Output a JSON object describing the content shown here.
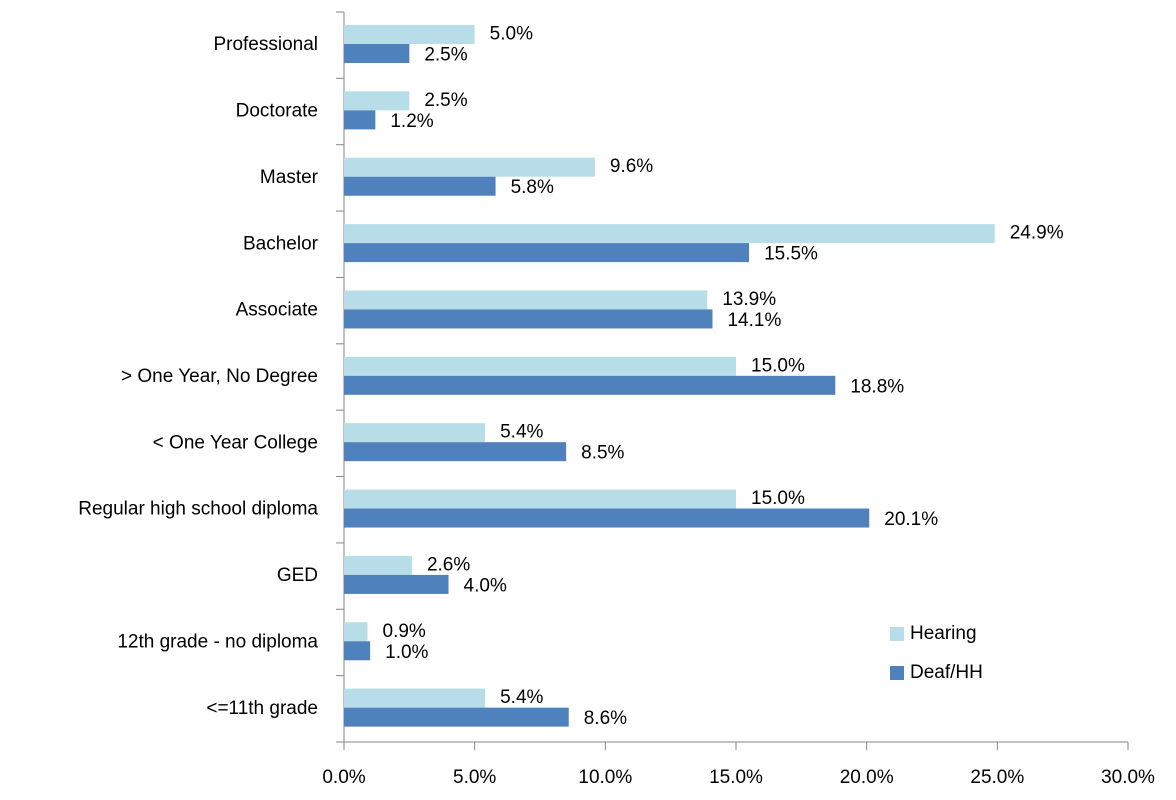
{
  "chart_data": {
    "type": "hbar",
    "categories": [
      "Professional",
      "Doctorate",
      "Master",
      "Bachelor",
      "Associate",
      "> One Year, No Degree",
      "< One Year College",
      "Regular high school diploma",
      "GED",
      "12th grade - no diploma",
      "<=11th grade"
    ],
    "series": [
      {
        "name": "Hearing",
        "color": "#b7dee8",
        "values": [
          5.0,
          2.5,
          9.6,
          24.9,
          13.9,
          15.0,
          5.4,
          15.0,
          2.6,
          0.9,
          5.4
        ],
        "value_labels": [
          "5.0%",
          "2.5%",
          "9.6%",
          "24.9%",
          "13.9%",
          "15.0%",
          "5.4%",
          "15.0%",
          "2.6%",
          "0.9%",
          "5.4%"
        ]
      },
      {
        "name": "Deaf/HH",
        "color": "#4f81bd",
        "values": [
          2.5,
          1.2,
          5.8,
          15.5,
          14.1,
          18.8,
          8.5,
          20.1,
          4.0,
          1.0,
          8.6
        ],
        "value_labels": [
          "2.5%",
          "1.2%",
          "5.8%",
          "15.5%",
          "14.1%",
          "18.8%",
          "8.5%",
          "20.1%",
          "4.0%",
          "1.0%",
          "8.6%"
        ]
      }
    ],
    "xlim": [
      0,
      30
    ],
    "xticks": [
      {
        "value": 0,
        "label": "0.0%"
      },
      {
        "value": 5,
        "label": "5.0%"
      },
      {
        "value": 10,
        "label": "10.0%"
      },
      {
        "value": 15,
        "label": "15.0%"
      },
      {
        "value": 20,
        "label": "20.0%"
      },
      {
        "value": 25,
        "label": "25.0%"
      },
      {
        "value": 30,
        "label": "30.0%"
      }
    ]
  }
}
